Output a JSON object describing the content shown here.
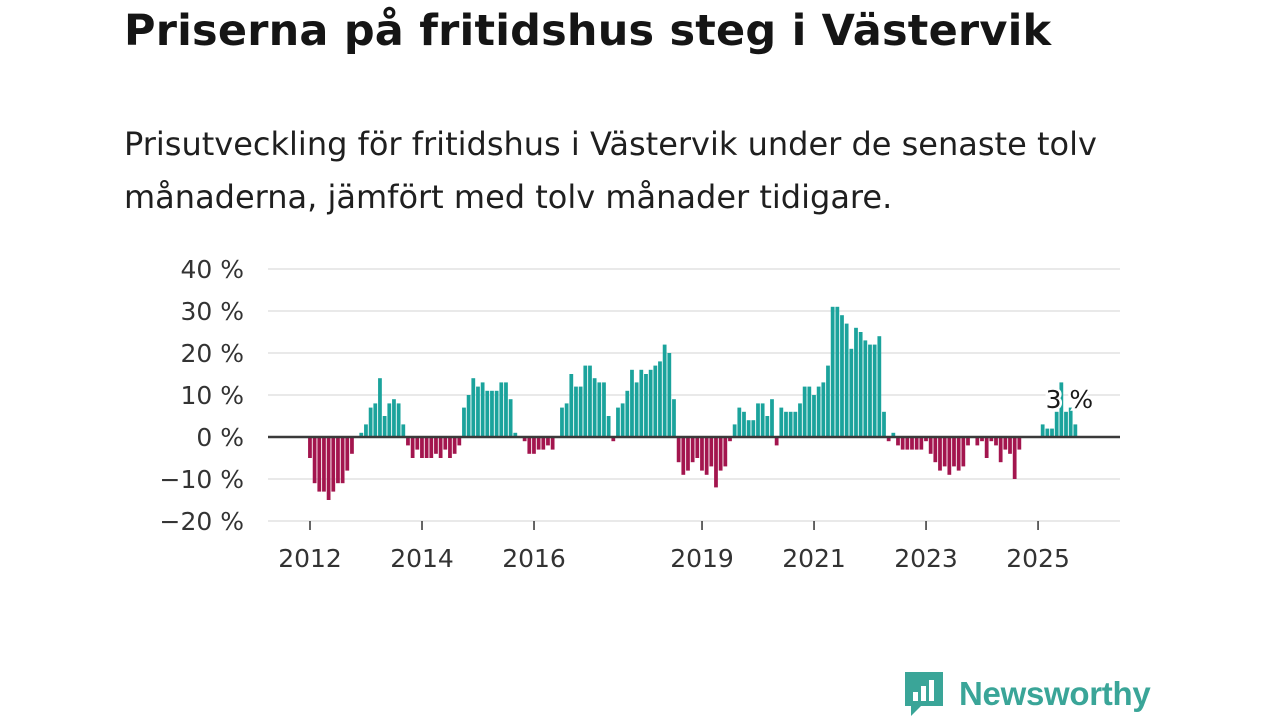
{
  "header": {
    "title": "Priserna på fritidshus steg i Västervik",
    "subtitle": "Prisutveckling för fritidshus i Västervik under de senaste tolv månaderna, jämfört med tolv månader tidigare."
  },
  "brand": {
    "name": "Newsworthy",
    "color": "#3aa598"
  },
  "chart_data": {
    "type": "bar",
    "title": "Priserna på fritidshus steg i Västervik",
    "xlabel": "",
    "ylabel": "",
    "ylim": [
      -20,
      40
    ],
    "yticks": [
      40,
      30,
      20,
      10,
      0,
      -10,
      -20
    ],
    "ytick_labels": [
      "40 %",
      "30 %",
      "20 %",
      "10 %",
      "0 %",
      "−10 %",
      "−20 %"
    ],
    "xticks": [
      {
        "label": "2012",
        "index": 0
      },
      {
        "label": "2014",
        "index": 24
      },
      {
        "label": "2016",
        "index": 48
      },
      {
        "label": "2019",
        "index": 84
      },
      {
        "label": "2021",
        "index": 108
      },
      {
        "label": "2023",
        "index": 132
      },
      {
        "label": "2025",
        "index": 156
      }
    ],
    "positive_color": "#1ba39c",
    "negative_color": "#a3154e",
    "annotation": {
      "text": "3 %",
      "index": 164
    },
    "values": [
      -5,
      -11,
      -13,
      -13,
      -15,
      -13,
      -11,
      -11,
      -8,
      -4,
      0,
      1,
      3,
      7,
      8,
      14,
      5,
      8,
      9,
      8,
      3,
      -2,
      -5,
      -3,
      -5,
      -5,
      -5,
      -4,
      -5,
      -3,
      -5,
      -4,
      -2,
      7,
      10,
      14,
      12,
      13,
      11,
      11,
      11,
      13,
      13,
      9,
      1,
      0,
      -1,
      -4,
      -4,
      -3,
      -3,
      -2,
      -3,
      0,
      7,
      8,
      15,
      12,
      12,
      17,
      17,
      14,
      13,
      13,
      5,
      -1,
      7,
      8,
      11,
      16,
      13,
      16,
      15,
      16,
      17,
      18,
      22,
      20,
      9,
      -6,
      -9,
      -8,
      -6,
      -5,
      -8,
      -9,
      -7,
      -12,
      -8,
      -7,
      -1,
      3,
      7,
      6,
      4,
      4,
      8,
      8,
      5,
      9,
      -2,
      7,
      6,
      6,
      6,
      8,
      12,
      12,
      10,
      12,
      13,
      17,
      31,
      31,
      29,
      27,
      21,
      26,
      25,
      23,
      22,
      22,
      24,
      6,
      -1,
      1,
      -2,
      -3,
      -3,
      -3,
      -3,
      -3,
      -1,
      -4,
      -6,
      -8,
      -7,
      -9,
      -7,
      -8,
      -7,
      -2,
      0,
      -2,
      -1,
      -5,
      -1,
      -2,
      -6,
      -3,
      -4,
      -10,
      -3,
      0,
      0,
      0,
      0,
      3,
      2,
      2,
      6,
      13,
      6,
      7,
      3
    ]
  }
}
